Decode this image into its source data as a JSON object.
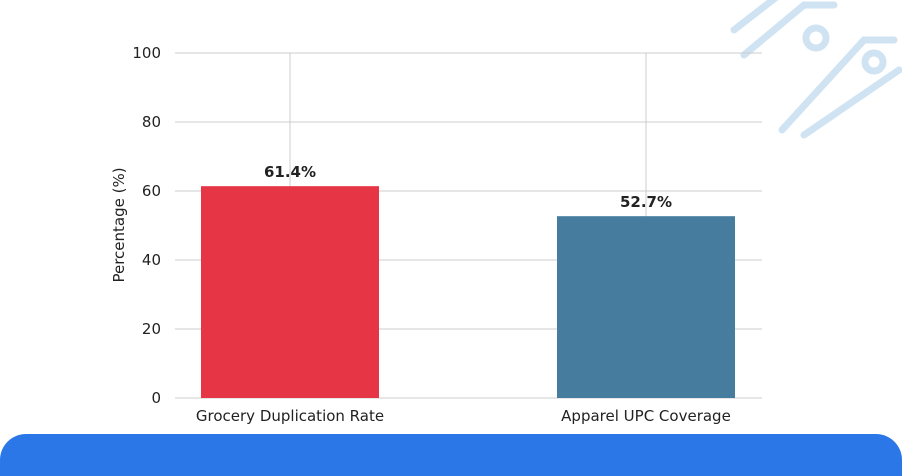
{
  "colors": {
    "grocery_bar": "#e63646",
    "apparel_bar": "#467c9e",
    "bottom_panel": "#2b77e8",
    "gridline": "#cccccc",
    "text": "#222222",
    "decoration": "#cfe3f3"
  },
  "icons": {
    "decoration": "circuit-pattern-icon"
  },
  "chart_data": {
    "type": "bar",
    "categories": [
      "Grocery Duplication Rate",
      "Apparel UPC Coverage"
    ],
    "values": [
      61.4,
      52.7
    ],
    "value_labels": [
      "61.4%",
      "52.7%"
    ],
    "bar_colors": [
      "#e63646",
      "#467c9e"
    ],
    "title": "",
    "xlabel": "",
    "ylabel": "Percentage (%)",
    "ylim": [
      0,
      100
    ],
    "yticks": [
      0,
      20,
      40,
      60,
      80,
      100
    ],
    "grid": true,
    "legend": "none"
  }
}
